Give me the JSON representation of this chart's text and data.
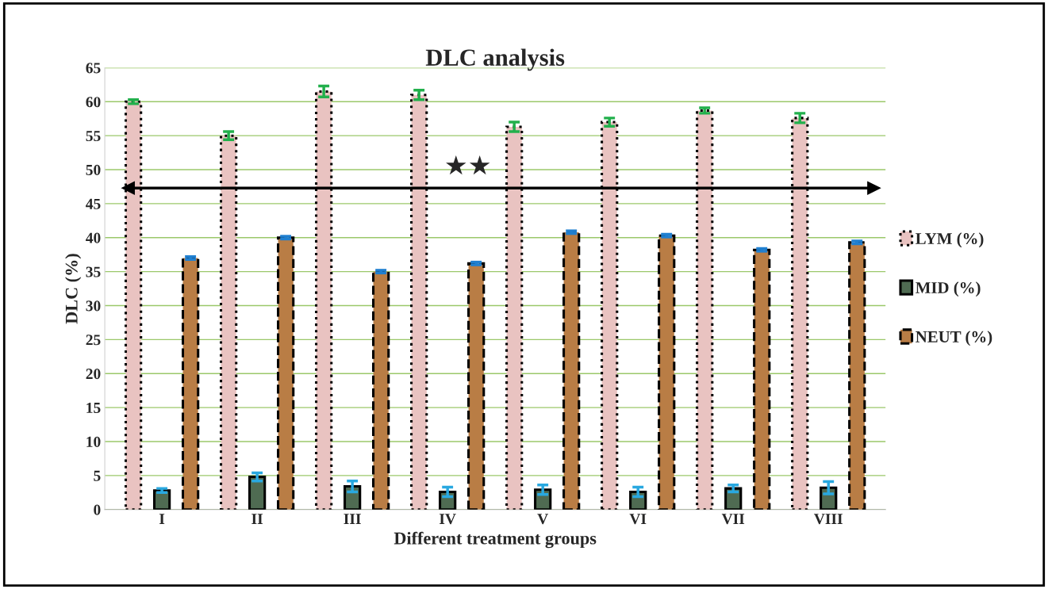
{
  "chart_data": {
    "type": "bar",
    "title": "DLC analysis",
    "xlabel": "Different treatment groups",
    "ylabel": "DLC (%)",
    "categories": [
      "I",
      "II",
      "III",
      "IV",
      "V",
      "VI",
      "VII",
      "VIII"
    ],
    "series": [
      {
        "name": "LYM (%)",
        "color": "#e9c3c1",
        "values": [
          60,
          55,
          61.5,
          61,
          56.3,
          57,
          58.7,
          57.6
        ],
        "errors": [
          0.3,
          0.6,
          0.8,
          0.7,
          0.7,
          0.6,
          0.4,
          0.7
        ]
      },
      {
        "name": "MID (%)",
        "color": "#4f6b52",
        "values": [
          2.8,
          4.8,
          3.4,
          2.6,
          2.9,
          2.6,
          3.1,
          3.2
        ],
        "errors": [
          0.3,
          0.6,
          0.8,
          0.7,
          0.7,
          0.7,
          0.5,
          0.9
        ]
      },
      {
        "name": "NEUT (%)",
        "color": "#b97d45",
        "values": [
          37,
          40,
          35,
          36.2,
          40.8,
          40.3,
          38.2,
          39.3
        ],
        "errors": [
          0.2,
          0.2,
          0.2,
          0.2,
          0.2,
          0.2,
          0.2,
          0.2
        ]
      }
    ],
    "ylim": [
      0,
      65
    ],
    "yticks": [
      0,
      5,
      10,
      15,
      20,
      25,
      30,
      35,
      40,
      45,
      50,
      55,
      60,
      65
    ],
    "grid": "y",
    "legend": "right",
    "ref_lines": [
      {
        "axis": "y",
        "value": 47.3,
        "color": "#000000",
        "line_style": "solid"
      }
    ],
    "annotations": [
      "★★"
    ]
  }
}
